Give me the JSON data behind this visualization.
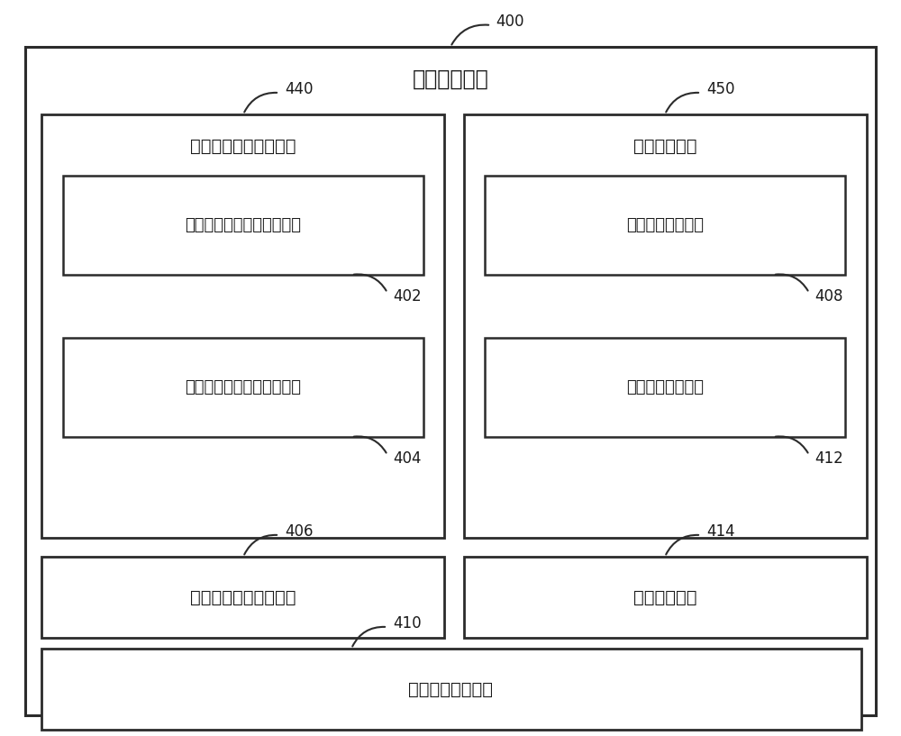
{
  "title": "车辆控制装置",
  "label_400": "400",
  "label_440": "440",
  "label_450": "450",
  "label_402": "402",
  "label_404": "404",
  "label_406": "406",
  "label_408": "408",
  "label_410": "410",
  "label_412": "412",
  "label_414": "414",
  "text_local_module": "局部环境信息获取模块",
  "text_decision_module": "决策制定模块",
  "text_unit_402": "本车局部环境信息获取单元",
  "text_unit_404": "他车局部环境信息获取单元",
  "text_module_406": "全局环境信息生成模块",
  "text_unit_408": "领航行为制定单元",
  "text_module_410": "前车行为识别模块",
  "text_unit_412": "跟随行为制定单元",
  "text_module_414": "控制执行模块",
  "bg_color": "#ffffff",
  "box_edge_color": "#2b2b2b",
  "text_color": "#1a1a1a",
  "font_size_title": 17,
  "font_size_module": 14,
  "font_size_unit": 13,
  "font_size_number": 12
}
